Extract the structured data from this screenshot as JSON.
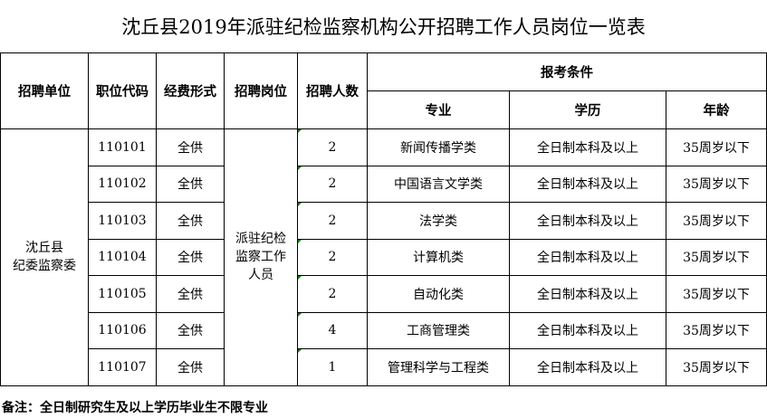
{
  "title": "沈丘县2019年派驻纪检监察机构公开招聘工作人员岗位一览表",
  "headers": {
    "unit": "招聘单位",
    "code": "职位代码",
    "funding": "经费形式",
    "post": "招聘岗位",
    "count": "招聘人数",
    "conditions": "报考条件",
    "major": "专业",
    "education": "学历",
    "age": "年龄"
  },
  "unit": "沈丘县\n纪委监察委",
  "post": "派驻纪检\n监察工作\n人员",
  "rows": [
    {
      "code": "110101",
      "funding": "全供",
      "count": "2",
      "major": "新闻传播学类",
      "education": "全日制本科及以上",
      "age": "35周岁以下"
    },
    {
      "code": "110102",
      "funding": "全供",
      "count": "2",
      "major": "中国语言文学类",
      "education": "全日制本科及以上",
      "age": "35周岁以下"
    },
    {
      "code": "110103",
      "funding": "全供",
      "count": "2",
      "major": "法学类",
      "education": "全日制本科及以上",
      "age": "35周岁以下"
    },
    {
      "code": "110104",
      "funding": "全供",
      "count": "2",
      "major": "计算机类",
      "education": "全日制本科及以上",
      "age": "35周岁以下"
    },
    {
      "code": "110105",
      "funding": "全供",
      "count": "2",
      "major": "自动化类",
      "education": "全日制本科及以上",
      "age": "35周岁以下"
    },
    {
      "code": "110106",
      "funding": "全供",
      "count": "4",
      "major": "工商管理类",
      "education": "全日制本科及以上",
      "age": "35周岁以下"
    },
    {
      "code": "110107",
      "funding": "全供",
      "count": "1",
      "major": "管理科学与工程类",
      "education": "全日制本科及以上",
      "age": "35周岁以下"
    }
  ],
  "note": "备注：全日制研究生及以上学历毕业生不限专业"
}
